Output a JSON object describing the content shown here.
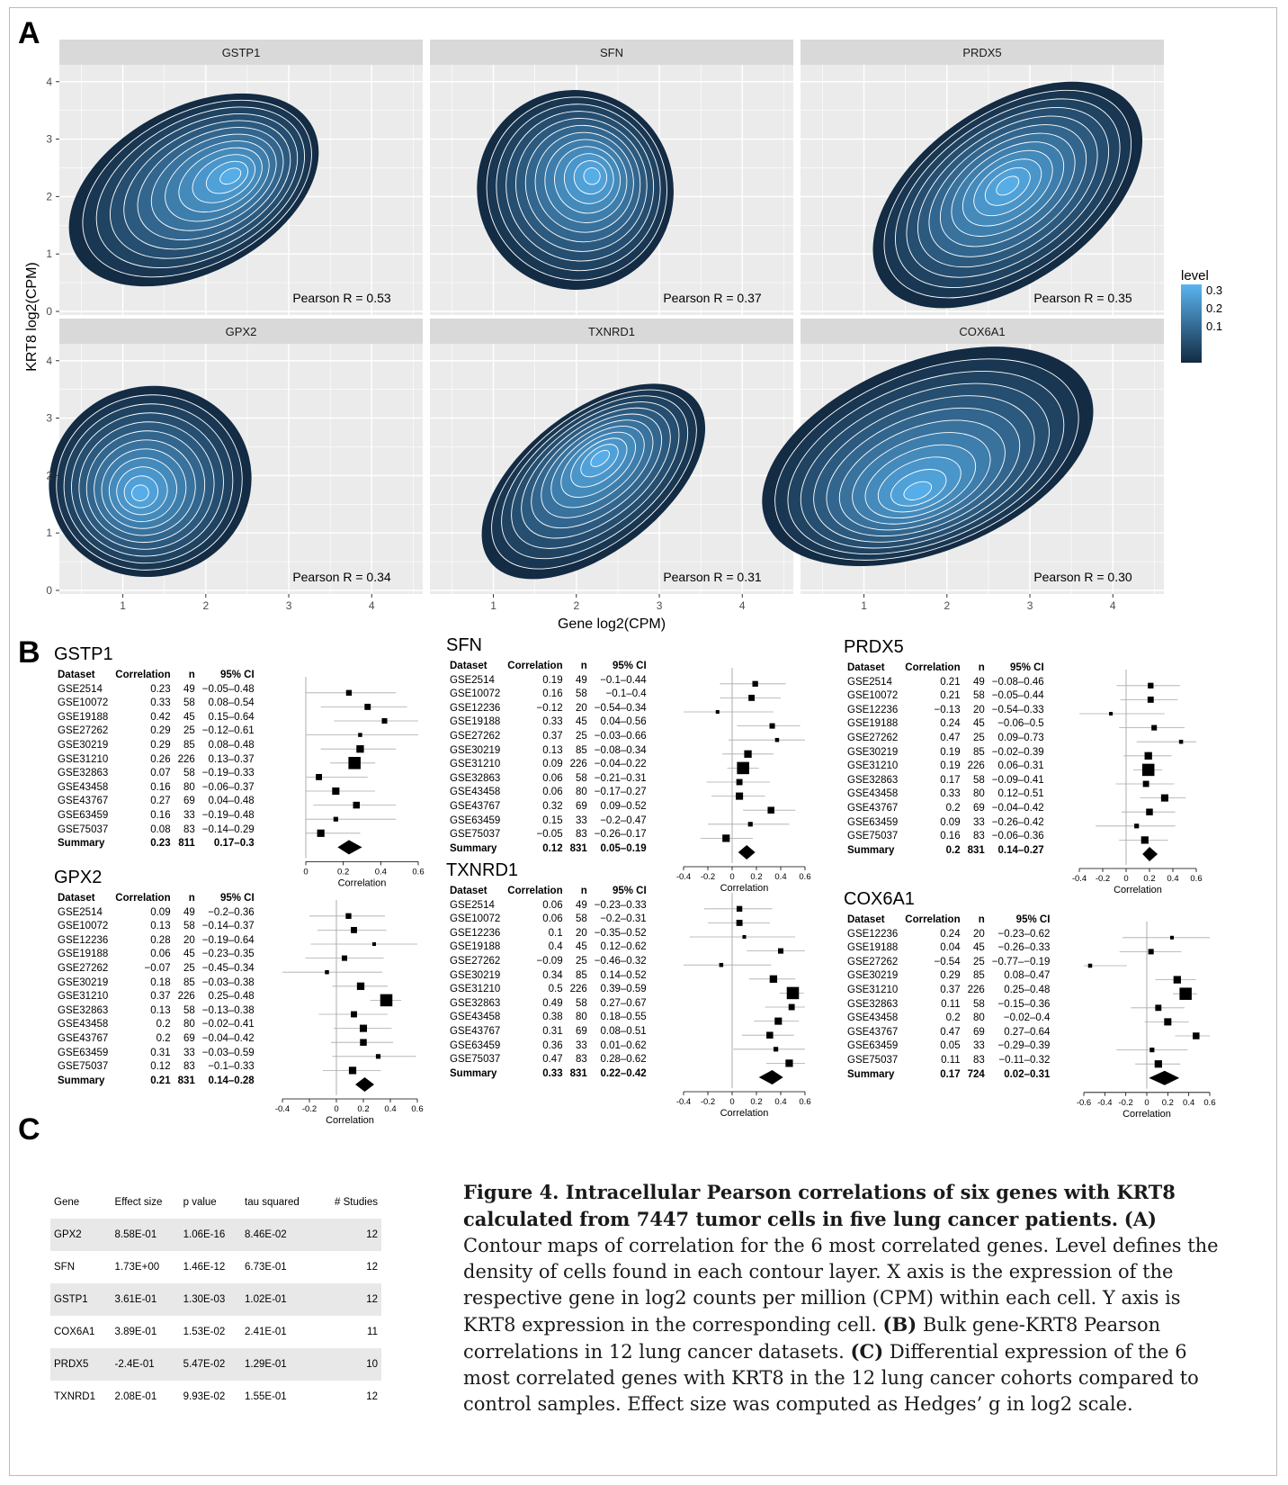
{
  "labels": {
    "A": "A",
    "B": "B",
    "C": "C"
  },
  "panelA": {
    "x_axis_label": "Gene log2(CPM)",
    "y_axis_label": "KRT8   log2(CPM)",
    "y_ticks": [
      "0",
      "1",
      "2",
      "3",
      "4"
    ],
    "x_ticks": [
      "1",
      "2",
      "3",
      "4"
    ],
    "legend": {
      "title": "level",
      "ticks": [
        "0.3",
        "0.2",
        "0.1"
      ],
      "colors": [
        "#5ab4f0",
        "#132b43"
      ]
    },
    "panels": [
      {
        "gene": "GSTP1",
        "pearson": "Pearson R = 0.53"
      },
      {
        "gene": "SFN",
        "pearson": "Pearson R = 0.37"
      },
      {
        "gene": "PRDX5",
        "pearson": "Pearson R = 0.35"
      },
      {
        "gene": "GPX2",
        "pearson": "Pearson R = 0.34"
      },
      {
        "gene": "TXNRD1",
        "pearson": "Pearson R = 0.31"
      },
      {
        "gene": "COX6A1",
        "pearson": "Pearson R = 0.30"
      }
    ]
  },
  "panelB": {
    "headers": [
      "Dataset",
      "Correlation",
      "n",
      "95% CI"
    ],
    "axis_label": "Correlation",
    "forests": [
      {
        "gene": "GSTP1",
        "ticks": [
          "0",
          "0.2",
          "0.4",
          "0.6"
        ],
        "rows": [
          [
            "GSE2514",
            "0.23",
            "49",
            "−0.05–0.48"
          ],
          [
            "GSE10072",
            "0.33",
            "58",
            "0.08–0.54"
          ],
          [
            "GSE19188",
            "0.42",
            "45",
            "0.15–0.64"
          ],
          [
            "GSE27262",
            "0.29",
            "25",
            "−0.12–0.61"
          ],
          [
            "GSE30219",
            "0.29",
            "85",
            "0.08–0.48"
          ],
          [
            "GSE31210",
            "0.26",
            "226",
            "0.13–0.37"
          ],
          [
            "GSE32863",
            "0.07",
            "58",
            "−0.19–0.33"
          ],
          [
            "GSE43458",
            "0.16",
            "80",
            "−0.06–0.37"
          ],
          [
            "GSE43767",
            "0.27",
            "69",
            "0.04–0.48"
          ],
          [
            "GSE63459",
            "0.16",
            "33",
            "−0.19–0.48"
          ],
          [
            "GSE75037",
            "0.08",
            "83",
            "−0.14–0.29"
          ]
        ],
        "summary": [
          "Summary",
          "0.23",
          "811",
          "0.17–0.3"
        ]
      },
      {
        "gene": "SFN",
        "ticks": [
          "-0.4",
          "-0.2",
          "0",
          "0.2",
          "0.4",
          "0.6"
        ],
        "rows": [
          [
            "GSE2514",
            "0.19",
            "49",
            "−0.1–0.44"
          ],
          [
            "GSE10072",
            "0.16",
            "58",
            "−0.1–0.4"
          ],
          [
            "GSE12236",
            "−0.12",
            "20",
            "−0.54–0.34"
          ],
          [
            "GSE19188",
            "0.33",
            "45",
            "0.04–0.56"
          ],
          [
            "GSE27262",
            "0.37",
            "25",
            "−0.03–0.66"
          ],
          [
            "GSE30219",
            "0.13",
            "85",
            "−0.08–0.34"
          ],
          [
            "GSE31210",
            "0.09",
            "226",
            "−0.04–0.22"
          ],
          [
            "GSE32863",
            "0.06",
            "58",
            "−0.21–0.31"
          ],
          [
            "GSE43458",
            "0.06",
            "80",
            "−0.17–0.27"
          ],
          [
            "GSE43767",
            "0.32",
            "69",
            "0.09–0.52"
          ],
          [
            "GSE63459",
            "0.15",
            "33",
            "−0.2–0.47"
          ],
          [
            "GSE75037",
            "−0.05",
            "83",
            "−0.26–0.17"
          ]
        ],
        "summary": [
          "Summary",
          "0.12",
          "831",
          "0.05–0.19"
        ]
      },
      {
        "gene": "PRDX5",
        "ticks": [
          "-0.4",
          "-0.2",
          "0",
          "0.2",
          "0.4",
          "0.6"
        ],
        "rows": [
          [
            "GSE2514",
            "0.21",
            "49",
            "−0.08–0.46"
          ],
          [
            "GSE10072",
            "0.21",
            "58",
            "−0.05–0.44"
          ],
          [
            "GSE12236",
            "−0.13",
            "20",
            "−0.54–0.33"
          ],
          [
            "GSE19188",
            "0.24",
            "45",
            "−0.06–0.5"
          ],
          [
            "GSE27262",
            "0.47",
            "25",
            "0.09–0.73"
          ],
          [
            "GSE30219",
            "0.19",
            "85",
            "−0.02–0.39"
          ],
          [
            "GSE31210",
            "0.19",
            "226",
            "0.06–0.31"
          ],
          [
            "GSE32863",
            "0.17",
            "58",
            "−0.09–0.41"
          ],
          [
            "GSE43458",
            "0.33",
            "80",
            "0.12–0.51"
          ],
          [
            "GSE43767",
            "0.2",
            "69",
            "−0.04–0.42"
          ],
          [
            "GSE63459",
            "0.09",
            "33",
            "−0.26–0.42"
          ],
          [
            "GSE75037",
            "0.16",
            "83",
            "−0.06–0.36"
          ]
        ],
        "summary": [
          "Summary",
          "0.2",
          "831",
          "0.14–0.27"
        ]
      },
      {
        "gene": "GPX2",
        "ticks": [
          "-0.4",
          "-0.2",
          "0",
          "0.2",
          "0.4",
          "0.6"
        ],
        "rows": [
          [
            "GSE2514",
            "0.09",
            "49",
            "−0.2–0.36"
          ],
          [
            "GSE10072",
            "0.13",
            "58",
            "−0.14–0.37"
          ],
          [
            "GSE12236",
            "0.28",
            "20",
            "−0.19–0.64"
          ],
          [
            "GSE19188",
            "0.06",
            "45",
            "−0.23–0.35"
          ],
          [
            "GSE27262",
            "−0.07",
            "25",
            "−0.45–0.34"
          ],
          [
            "GSE30219",
            "0.18",
            "85",
            "−0.03–0.38"
          ],
          [
            "GSE31210",
            "0.37",
            "226",
            "0.25–0.48"
          ],
          [
            "GSE32863",
            "0.13",
            "58",
            "−0.13–0.38"
          ],
          [
            "GSE43458",
            "0.2",
            "80",
            "−0.02–0.41"
          ],
          [
            "GSE43767",
            "0.2",
            "69",
            "−0.04–0.42"
          ],
          [
            "GSE63459",
            "0.31",
            "33",
            "−0.03–0.59"
          ],
          [
            "GSE75037",
            "0.12",
            "83",
            "−0.1–0.33"
          ]
        ],
        "summary": [
          "Summary",
          "0.21",
          "831",
          "0.14–0.28"
        ]
      },
      {
        "gene": "TXNRD1",
        "ticks": [
          "-0.4",
          "-0.2",
          "0",
          "0.2",
          "0.4",
          "0.6"
        ],
        "rows": [
          [
            "GSE2514",
            "0.06",
            "49",
            "−0.23–0.33"
          ],
          [
            "GSE10072",
            "0.06",
            "58",
            "−0.2–0.31"
          ],
          [
            "GSE12236",
            "0.1",
            "20",
            "−0.35–0.52"
          ],
          [
            "GSE19188",
            "0.4",
            "45",
            "0.12–0.62"
          ],
          [
            "GSE27262",
            "−0.09",
            "25",
            "−0.46–0.32"
          ],
          [
            "GSE30219",
            "0.34",
            "85",
            "0.14–0.52"
          ],
          [
            "GSE31210",
            "0.5",
            "226",
            "0.39–0.59"
          ],
          [
            "GSE32863",
            "0.49",
            "58",
            "0.27–0.67"
          ],
          [
            "GSE43458",
            "0.38",
            "80",
            "0.18–0.55"
          ],
          [
            "GSE43767",
            "0.31",
            "69",
            "0.08–0.51"
          ],
          [
            "GSE63459",
            "0.36",
            "33",
            "0.01–0.62"
          ],
          [
            "GSE75037",
            "0.47",
            "83",
            "0.28–0.62"
          ]
        ],
        "summary": [
          "Summary",
          "0.33",
          "831",
          "0.22–0.42"
        ]
      },
      {
        "gene": "COX6A1",
        "ticks": [
          "-0.6",
          "-0.4",
          "-0.2",
          "0",
          "0.2",
          "0.4",
          "0.6"
        ],
        "rows": [
          [
            "GSE12236",
            "0.24",
            "20",
            "−0.23–0.62"
          ],
          [
            "GSE19188",
            "0.04",
            "45",
            "−0.26–0.33"
          ],
          [
            "GSE27262",
            "−0.54",
            "25",
            "−0.77–−0.19"
          ],
          [
            "GSE30219",
            "0.29",
            "85",
            "0.08–0.47"
          ],
          [
            "GSE31210",
            "0.37",
            "226",
            "0.25–0.48"
          ],
          [
            "GSE32863",
            "0.11",
            "58",
            "−0.15–0.36"
          ],
          [
            "GSE43458",
            "0.2",
            "80",
            "−0.02–0.4"
          ],
          [
            "GSE43767",
            "0.47",
            "69",
            "0.27–0.64"
          ],
          [
            "GSE63459",
            "0.05",
            "33",
            "−0.29–0.39"
          ],
          [
            "GSE75037",
            "0.11",
            "83",
            "−0.11–0.32"
          ]
        ],
        "summary": [
          "Summary",
          "0.17",
          "724",
          "0.02–0.31"
        ]
      }
    ]
  },
  "panelC": {
    "headers": [
      "Gene",
      "Effect size",
      "p value",
      "tau squared",
      "# Studies"
    ],
    "rows": [
      [
        "GPX2",
        "8.58E-01",
        "1.06E-16",
        "8.46E-02",
        "12"
      ],
      [
        "SFN",
        "1.73E+00",
        "1.46E-12",
        "6.73E-01",
        "12"
      ],
      [
        "GSTP1",
        "3.61E-01",
        "1.30E-03",
        "1.02E-01",
        "12"
      ],
      [
        "COX6A1",
        "3.89E-01",
        "1.53E-02",
        "2.41E-01",
        "11"
      ],
      [
        "PRDX5",
        "-2.4E-01",
        "5.47E-02",
        "1.29E-01",
        "10"
      ],
      [
        "TXNRD1",
        "2.08E-01",
        "9.93E-02",
        "1.55E-01",
        "12"
      ]
    ]
  },
  "caption": {
    "title": "Figure 4. Intracellular Pearson correlations of six genes with KRT8 calculated from 7447 tumor cells in five lung cancer patients.",
    "a_label": "(A)",
    "a_text": "Contour maps of correlation for the 6 most correlated genes. Level defines the density of cells found in each contour layer. X axis is the expression of the respective gene in log2 counts per million (CPM) within each cell. Y axis is KRT8 expression in the corresponding cell.",
    "b_label": "(B)",
    "b_text": "Bulk gene-KRT8 Pearson correlations in 12 lung cancer datasets.",
    "c_label": "(C)",
    "c_text": "Differential expression of the 6 most correlated genes with KRT8 in the 12 lung cancer cohorts compared to control samples. Effect size was computed as Hedges’ g in log2 scale."
  }
}
